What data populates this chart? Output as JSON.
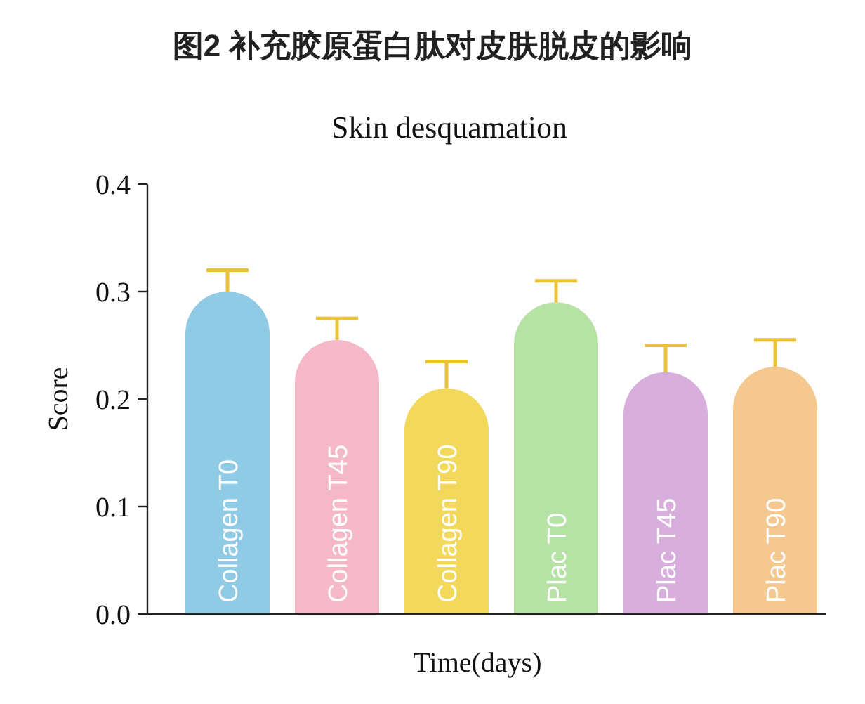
{
  "chart_data": {
    "type": "bar",
    "title": "图2 补充胶原蛋白肽对皮肤脱皮的影响",
    "subtitle": "Skin desquamation",
    "xlabel": "Time(days)",
    "ylabel": "Score",
    "categories": [
      "Collagen T0",
      "Collagen T45",
      "Collagen T90",
      "Plac T0",
      "Plac T45",
      "Plac T90"
    ],
    "values": [
      0.3,
      0.255,
      0.21,
      0.29,
      0.225,
      0.23
    ],
    "errors": [
      [
        0.3,
        0.32
      ],
      [
        0.255,
        0.275
      ],
      [
        0.21,
        0.235
      ],
      [
        0.29,
        0.31
      ],
      [
        0.225,
        0.25
      ],
      [
        0.23,
        0.255
      ]
    ],
    "colors": [
      "#8fcbe5",
      "#f4b8c9",
      "#f2d95c",
      "#b7e2a6",
      "#d8aedd",
      "#f4c88f"
    ],
    "ylim": [
      0,
      0.4
    ],
    "yticks": [
      {
        "value": 0,
        "label": "0.0"
      },
      {
        "value": 0.1,
        "label": "0.1"
      },
      {
        "value": 0.2,
        "label": "0.2"
      },
      {
        "value": 0.3,
        "label": "0.3"
      },
      {
        "value": 0.4,
        "label": "0.4"
      }
    ],
    "grid": false
  }
}
